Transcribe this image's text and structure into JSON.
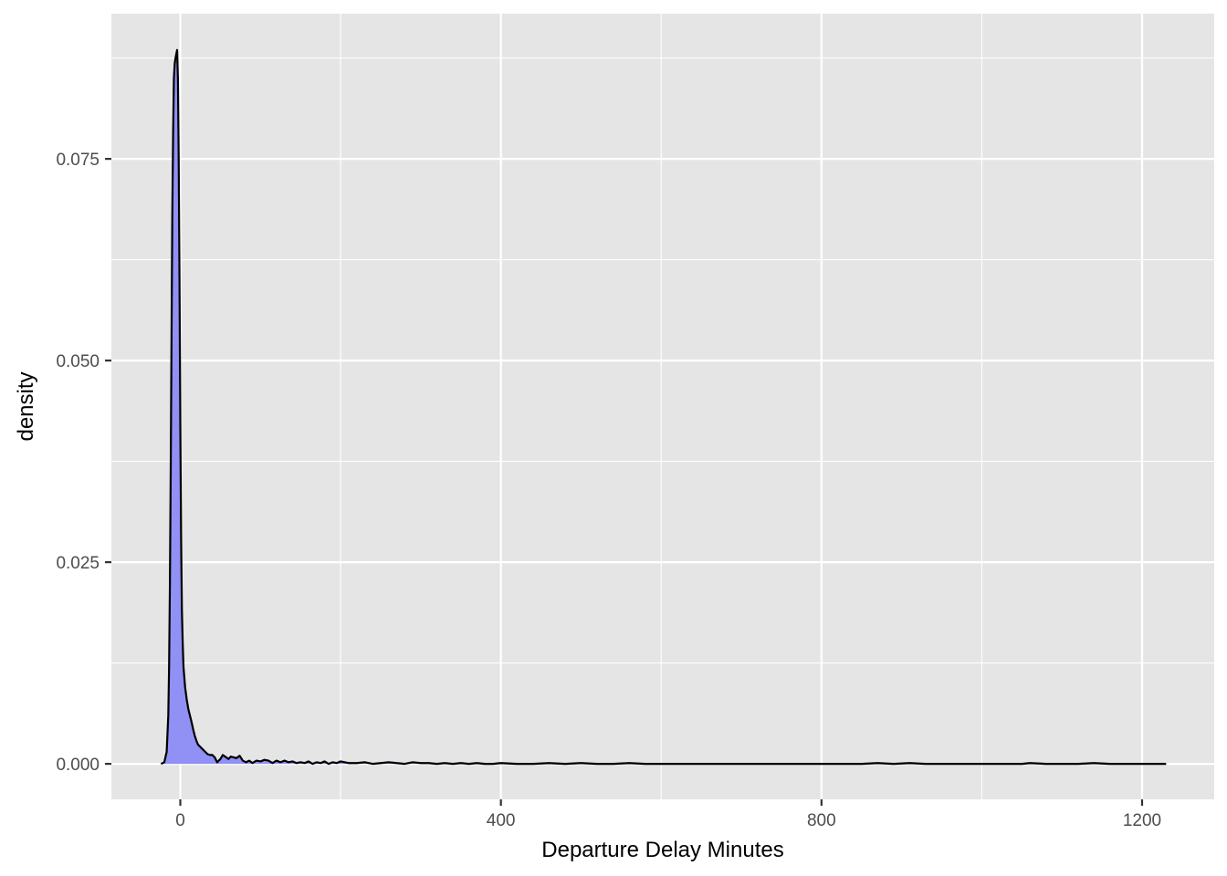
{
  "chart_data": {
    "type": "area",
    "title": "",
    "xlabel": "Departure Delay Minutes",
    "ylabel": "density",
    "xlim": [
      -86,
      1290
    ],
    "ylim": [
      -0.0044,
      0.093
    ],
    "x_ticks": [
      0,
      400,
      800,
      1200
    ],
    "x_tick_labels": [
      "0",
      "400",
      "800",
      "1200"
    ],
    "y_ticks": [
      0.0,
      0.025,
      0.05,
      0.075
    ],
    "y_tick_labels": [
      "0.000",
      "0.025",
      "0.050",
      "0.075"
    ],
    "grid": true,
    "legend": "none",
    "colors": {
      "panel_background": "#e5e5e5",
      "grid": "#ffffff",
      "fill": "#9090f5",
      "line": "#000000"
    },
    "series": [
      {
        "x": [
          -24,
          -20,
          -17,
          -15,
          -14,
          -13,
          -12,
          -11,
          -10,
          -9,
          -8,
          -7,
          -6,
          -5,
          -4,
          -3,
          -2,
          -1,
          0,
          1,
          2,
          3,
          4,
          6,
          8,
          10,
          12,
          14,
          16,
          18,
          20,
          22,
          25,
          28,
          31,
          34,
          37,
          40,
          43,
          46,
          50,
          53,
          56,
          60,
          63,
          67,
          70,
          74,
          78,
          82,
          86,
          90,
          95,
          100,
          105,
          110,
          115,
          120,
          125,
          130,
          135,
          140,
          145,
          150,
          155,
          160,
          165,
          170,
          175,
          180,
          185,
          190,
          195,
          200,
          210,
          220,
          230,
          240,
          250,
          260,
          270,
          280,
          290,
          300,
          310,
          320,
          330,
          340,
          350,
          360,
          370,
          380,
          390,
          400,
          420,
          440,
          460,
          480,
          500,
          520,
          540,
          560,
          580,
          600,
          650,
          700,
          750,
          800,
          850,
          870,
          890,
          910,
          930,
          950,
          1000,
          1050,
          1060,
          1080,
          1100,
          1120,
          1140,
          1160,
          1180,
          1200,
          1230
        ],
        "y": [
          0.0,
          0.0002,
          0.0015,
          0.006,
          0.012,
          0.022,
          0.036,
          0.052,
          0.068,
          0.078,
          0.085,
          0.0868,
          0.0875,
          0.088,
          0.0885,
          0.085,
          0.075,
          0.06,
          0.042,
          0.028,
          0.019,
          0.015,
          0.012,
          0.0095,
          0.008,
          0.0068,
          0.006,
          0.0052,
          0.0043,
          0.0035,
          0.0029,
          0.0024,
          0.0021,
          0.0018,
          0.0015,
          0.0012,
          0.0011,
          0.0011,
          0.0008,
          0.0002,
          0.0006,
          0.0011,
          0.0009,
          0.0006,
          0.0009,
          0.0008,
          0.0007,
          0.001,
          0.0004,
          0.0002,
          0.0004,
          0.0001,
          0.0004,
          0.0003,
          0.0005,
          0.0004,
          0.0001,
          0.0004,
          0.0002,
          0.0004,
          0.0002,
          0.0003,
          0.0001,
          0.0002,
          0.0001,
          0.0003,
          0.0,
          0.0002,
          0.0001,
          0.0003,
          0.0,
          0.0002,
          0.0001,
          0.0003,
          0.0001,
          0.0001,
          0.0002,
          0.0,
          0.0001,
          0.0002,
          0.0001,
          0.0,
          0.0002,
          0.0001,
          0.0001,
          0.0,
          0.0001,
          0.0,
          0.0001,
          0.0,
          0.0001,
          0.0,
          0.0,
          0.0001,
          0.0,
          0.0,
          0.0001,
          0.0,
          0.0001,
          0.0,
          0.0,
          0.0001,
          0.0,
          0.0,
          0.0,
          0.0,
          0.0,
          0.0,
          0.0,
          0.0001,
          0.0,
          0.0001,
          0.0,
          0.0,
          0.0,
          0.0,
          0.0001,
          0.0,
          0.0,
          0.0,
          0.0001,
          0.0,
          0.0,
          0.0,
          0.0
        ]
      }
    ]
  }
}
